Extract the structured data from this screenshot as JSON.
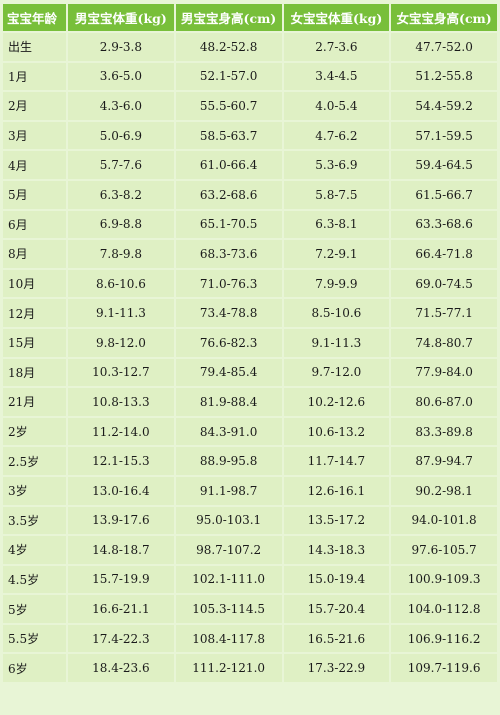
{
  "table": {
    "headers": [
      "宝宝年龄",
      "男宝宝体重(kg)",
      "男宝宝身高(cm)",
      "女宝宝体重(kg)",
      "女宝宝身高(cm)"
    ],
    "rows": [
      [
        "出生",
        "2.9-3.8",
        "48.2-52.8",
        "2.7-3.6",
        "47.7-52.0"
      ],
      [
        "1月",
        "3.6-5.0",
        "52.1-57.0",
        "3.4-4.5",
        "51.2-55.8"
      ],
      [
        "2月",
        "4.3-6.0",
        "55.5-60.7",
        "4.0-5.4",
        "54.4-59.2"
      ],
      [
        "3月",
        "5.0-6.9",
        "58.5-63.7",
        "4.7-6.2",
        "57.1-59.5"
      ],
      [
        "4月",
        "5.7-7.6",
        "61.0-66.4",
        "5.3-6.9",
        "59.4-64.5"
      ],
      [
        "5月",
        "6.3-8.2",
        "63.2-68.6",
        "5.8-7.5",
        "61.5-66.7"
      ],
      [
        "6月",
        "6.9-8.8",
        "65.1-70.5",
        "6.3-8.1",
        "63.3-68.6"
      ],
      [
        "8月",
        "7.8-9.8",
        "68.3-73.6",
        "7.2-9.1",
        "66.4-71.8"
      ],
      [
        "10月",
        "8.6-10.6",
        "71.0-76.3",
        "7.9-9.9",
        "69.0-74.5"
      ],
      [
        "12月",
        "9.1-11.3",
        "73.4-78.8",
        "8.5-10.6",
        "71.5-77.1"
      ],
      [
        "15月",
        "9.8-12.0",
        "76.6-82.3",
        "9.1-11.3",
        "74.8-80.7"
      ],
      [
        "18月",
        "10.3-12.7",
        "79.4-85.4",
        "9.7-12.0",
        "77.9-84.0"
      ],
      [
        "21月",
        "10.8-13.3",
        "81.9-88.4",
        "10.2-12.6",
        "80.6-87.0"
      ],
      [
        "2岁",
        "11.2-14.0",
        "84.3-91.0",
        "10.6-13.2",
        "83.3-89.8"
      ],
      [
        "2.5岁",
        "12.1-15.3",
        "88.9-95.8",
        "11.7-14.7",
        "87.9-94.7"
      ],
      [
        "3岁",
        "13.0-16.4",
        "91.1-98.7",
        "12.6-16.1",
        "90.2-98.1"
      ],
      [
        "3.5岁",
        "13.9-17.6",
        "95.0-103.1",
        "13.5-17.2",
        "94.0-101.8"
      ],
      [
        "4岁",
        "14.8-18.7",
        "98.7-107.2",
        "14.3-18.3",
        "97.6-105.7"
      ],
      [
        "4.5岁",
        "15.7-19.9",
        "102.1-111.0",
        "15.0-19.4",
        "100.9-109.3"
      ],
      [
        "5岁",
        "16.6-21.1",
        "105.3-114.5",
        "15.7-20.4",
        "104.0-112.8"
      ],
      [
        "5.5岁",
        "17.4-22.3",
        "108.4-117.8",
        "16.5-21.6",
        "106.9-116.2"
      ],
      [
        "6岁",
        "18.4-23.6",
        "111.2-121.0",
        "17.3-22.9",
        "109.7-119.6"
      ]
    ]
  }
}
